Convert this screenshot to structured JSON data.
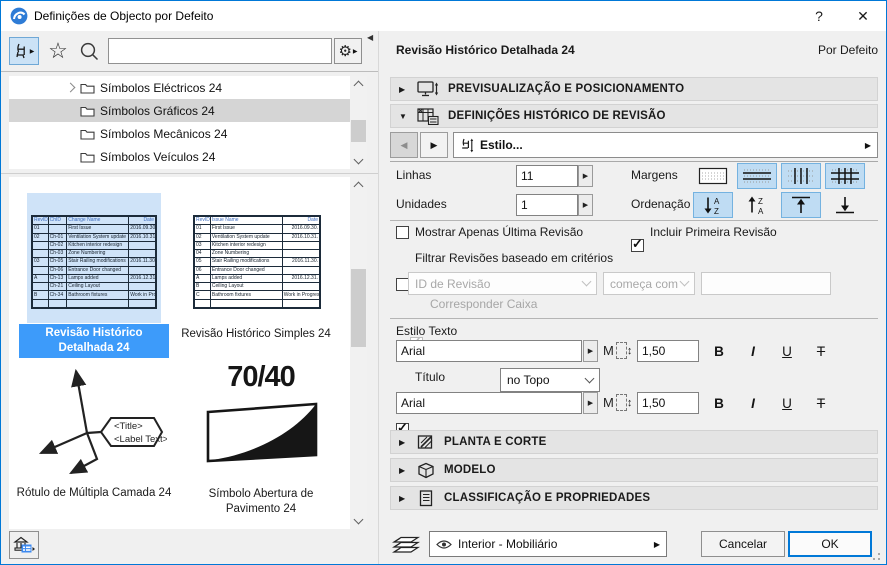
{
  "window": {
    "title": "Definições de Objecto por Defeito",
    "help_label": "?",
    "close_label": "✕"
  },
  "left_panel": {
    "search_value": "",
    "tree_items": [
      {
        "label": "Símbolos Eléctricos 24"
      },
      {
        "label": "Símbolos Gráficos 24"
      },
      {
        "label": "Símbolos Mecânicos 24"
      },
      {
        "label": "Símbolos Veículos 24"
      }
    ],
    "thumbnails": [
      {
        "label": "Revisão Histórico Detalhada 24"
      },
      {
        "label": "Revisão Histórico Simples 24"
      },
      {
        "label": "Rótulo de Múltipla Camada 24"
      },
      {
        "label": "Símbolo Abertura de Pavimento 24"
      }
    ],
    "detailed_table": {
      "headers": [
        "RevID",
        "ChID",
        "Change Name",
        "Date"
      ],
      "rows": [
        [
          "01",
          "",
          "First Issue",
          "2016.09.30."
        ],
        [
          "02",
          "Ch-01",
          "Ventilation System update",
          "2016.10.31."
        ],
        [
          "",
          "Ch-02",
          "Kitchen interior redesign",
          ""
        ],
        [
          "",
          "Ch-03",
          "Zone Numbering",
          ""
        ],
        [
          "03",
          "Ch-05",
          "Stair Railing modifications",
          "2016.11.30."
        ],
        [
          "",
          "Ch-06",
          "Entrance Door changed",
          ""
        ],
        [
          "A",
          "Ch-13",
          "Lamps added",
          "2016.12.31."
        ],
        [
          "",
          "Ch-21",
          "Ceiling Layout",
          ""
        ],
        [
          "B",
          "Ch-34",
          "Bathroom fixtures",
          "Work in Progress"
        ],
        [
          "",
          "",
          "",
          ""
        ]
      ]
    },
    "simple_table": {
      "headers": [
        "RevID",
        "Issue Name",
        "Date"
      ],
      "rows": [
        [
          "01",
          "First Issue",
          "2016.09.30."
        ],
        [
          "02",
          "Ventilation System update",
          "2016.10.31."
        ],
        [
          "03",
          "Kitchen interior redesign",
          ""
        ],
        [
          "04",
          "Zone Numbering",
          ""
        ],
        [
          "05",
          "Stair Railing modifications",
          "2016.11.30."
        ],
        [
          "06",
          "Entrance Door changed",
          ""
        ],
        [
          "A",
          "Lamps added",
          "2016.12.31."
        ],
        [
          "B",
          "Ceiling Layout",
          ""
        ],
        [
          "C",
          "Bathroom fixtures",
          "Work in Progress"
        ],
        [
          "",
          "",
          ""
        ]
      ]
    },
    "label_symbol": {
      "title": "<Title>",
      "text": "<Label Text>"
    },
    "opening_symbol": {
      "value": "70/40"
    }
  },
  "right_panel": {
    "title": "Revisão Histórico Detalhada 24",
    "status": "Por Defeito",
    "sections": {
      "preview": "PREVISUALIZAÇÃO E POSICIONAMENTO",
      "revision": "DEFINIÇÕES HISTÓRICO DE REVISÃO",
      "plan": "PLANTA E CORTE",
      "model": "MODELO",
      "classification": "CLASSIFICAÇÃO E PROPRIEDADES"
    },
    "style_button": "Estilo...",
    "rows": {
      "lines_label": "Linhas",
      "lines_value": "11",
      "units_label": "Unidades",
      "units_value": "1",
      "margins_label": "Margens",
      "order_label": "Ordenação"
    },
    "options": {
      "show_last_label": "Mostrar Apenas Última Revisão",
      "include_first_label": "Incluir Primeira Revisão",
      "filter_label": "Filtrar Revisões baseado em critérios",
      "match_case_label": "Corresponder Caixa"
    },
    "filter": {
      "field": "ID de Revisão",
      "operator": "começa com",
      "value": ""
    },
    "text_style": {
      "section_label": "Estilo Texto",
      "font_1": "Arial",
      "size_1": "1,50",
      "title_label": "Título",
      "title_position": "no Topo",
      "font_2": "Arial",
      "size_2": "1,50",
      "bold_label": "B",
      "italic_label": "I",
      "underline_label": "U",
      "strike_label": "T"
    },
    "sort_letters": {
      "a": "A",
      "z": "Z"
    },
    "footer": {
      "layer_value": "Interior - Mobiliário",
      "cancel_label": "Cancelar",
      "ok_label": "OK"
    }
  },
  "colors": {
    "accent": "#0078d7",
    "selected_thumb": "#3d9bfa",
    "preview_bg": "#cfe3f8",
    "toggle_selected_bg": "#bfdcf3",
    "toggle_selected_border": "#74b2e0"
  }
}
